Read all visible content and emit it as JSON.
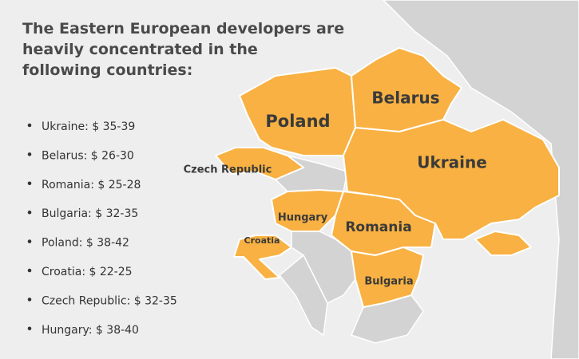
{
  "heading": [
    "The Eastern European developers are",
    "heavily concentrated in the",
    "following countries:"
  ],
  "list": [
    "Ukraine: $ 35-39",
    "Belarus: $ 26-30",
    "Romania: $ 25-28",
    "Bulgaria: $ 32-35",
    "Poland: $ 38-42",
    "Croatia: $ 22-25",
    "Czech Republic: $ 32-35",
    "Hungary: $ 38-40"
  ],
  "map_labels": {
    "poland": "Poland",
    "belarus": "Belarus",
    "ukraine": "Ukraine",
    "czech": "Czech Republic",
    "hungary": "Hungary",
    "croatia": "Croatia",
    "romania": "Romania",
    "bulgaria": "Bulgaria"
  }
}
